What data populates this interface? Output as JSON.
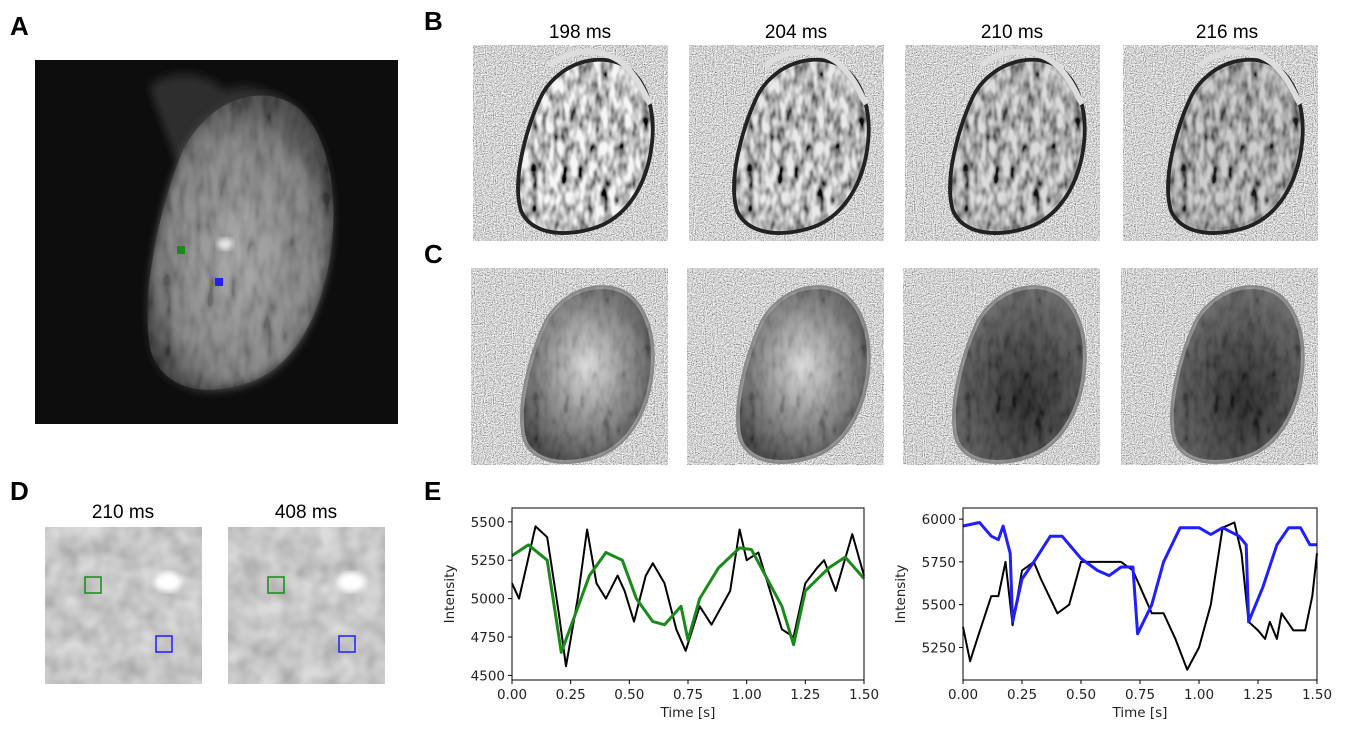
{
  "panels": {
    "A": {
      "label": "A"
    },
    "B": {
      "label": "B",
      "frames": [
        "198 ms",
        "204 ms",
        "210 ms",
        "216 ms"
      ]
    },
    "C": {
      "label": "C"
    },
    "D": {
      "label": "D",
      "frames": [
        "210 ms",
        "408 ms"
      ]
    },
    "E": {
      "label": "E"
    }
  },
  "chart_data": [
    {
      "type": "line",
      "xlabel": "Time [s]",
      "ylabel": "Intensity",
      "xlim": [
        0,
        1.5
      ],
      "ylim": [
        4470,
        5590
      ],
      "xticks": [
        {
          "value": 0,
          "label": "0.00"
        },
        {
          "value": 0.25,
          "label": "0.25"
        },
        {
          "value": 0.5,
          "label": "0.50"
        },
        {
          "value": 0.75,
          "label": "0.75"
        },
        {
          "value": 1,
          "label": "1.00"
        },
        {
          "value": 1.25,
          "label": "1.25"
        },
        {
          "value": 1.5,
          "label": "1.50"
        }
      ],
      "yticks": [
        4500,
        4750,
        5000,
        5250,
        5500
      ],
      "series": [
        {
          "color": "#000000",
          "x": [
            0,
            0.03,
            0.06,
            0.1,
            0.15,
            0.2,
            0.23,
            0.28,
            0.32,
            0.36,
            0.4,
            0.45,
            0.48,
            0.52,
            0.57,
            0.6,
            0.65,
            0.7,
            0.74,
            0.8,
            0.85,
            0.93,
            0.97,
            1.0,
            1.05,
            1.1,
            1.15,
            1.2,
            1.25,
            1.3,
            1.33,
            1.38,
            1.45,
            1.5
          ],
          "values": [
            5100,
            5000,
            5200,
            5470,
            5400,
            4900,
            4560,
            5000,
            5450,
            5100,
            5000,
            5150,
            5050,
            4850,
            5150,
            5230,
            5100,
            4800,
            4660,
            4950,
            4830,
            5050,
            5450,
            5250,
            5300,
            5050,
            4800,
            4750,
            5100,
            5200,
            5250,
            5050,
            5420,
            5150
          ]
        },
        {
          "color": "#1a8a1a",
          "x": [
            0,
            0.07,
            0.15,
            0.21,
            0.27,
            0.33,
            0.4,
            0.47,
            0.53,
            0.6,
            0.65,
            0.72,
            0.75,
            0.8,
            0.88,
            0.97,
            1.02,
            1.08,
            1.15,
            1.2,
            1.25,
            1.35,
            1.42,
            1.5
          ],
          "values": [
            5280,
            5350,
            5250,
            4650,
            4900,
            5150,
            5300,
            5250,
            5000,
            4850,
            4830,
            4950,
            4730,
            5000,
            5200,
            5330,
            5320,
            5150,
            4950,
            4700,
            5050,
            5200,
            5270,
            5130
          ]
        }
      ]
    },
    {
      "type": "line",
      "xlabel": "Time [s]",
      "ylabel": "Intensity",
      "xlim": [
        0,
        1.5
      ],
      "ylim": [
        5060,
        6065
      ],
      "xticks": [
        {
          "value": 0,
          "label": "0.00"
        },
        {
          "value": 0.25,
          "label": "0.25"
        },
        {
          "value": 0.5,
          "label": "0.50"
        },
        {
          "value": 0.75,
          "label": "0.75"
        },
        {
          "value": 1,
          "label": "1.00"
        },
        {
          "value": 1.25,
          "label": "1.25"
        },
        {
          "value": 1.5,
          "label": "1.50"
        }
      ],
      "yticks": [
        5250,
        5500,
        5750,
        6000
      ],
      "series": [
        {
          "color": "#000000",
          "x": [
            0,
            0.03,
            0.06,
            0.12,
            0.15,
            0.18,
            0.21,
            0.25,
            0.3,
            0.33,
            0.4,
            0.45,
            0.5,
            0.6,
            0.67,
            0.72,
            0.8,
            0.85,
            0.9,
            0.95,
            1.0,
            1.05,
            1.1,
            1.15,
            1.18,
            1.21,
            1.25,
            1.28,
            1.3,
            1.33,
            1.35,
            1.4,
            1.45,
            1.48,
            1.5
          ],
          "values": [
            5370,
            5170,
            5300,
            5550,
            5550,
            5750,
            5380,
            5700,
            5750,
            5650,
            5450,
            5500,
            5750,
            5750,
            5750,
            5700,
            5450,
            5450,
            5300,
            5120,
            5250,
            5500,
            5950,
            5980,
            5800,
            5400,
            5350,
            5300,
            5400,
            5300,
            5450,
            5350,
            5350,
            5550,
            5800
          ]
        },
        {
          "color": "#1f1fff",
          "x": [
            0,
            0.07,
            0.12,
            0.15,
            0.17,
            0.2,
            0.21,
            0.25,
            0.3,
            0.37,
            0.42,
            0.5,
            0.57,
            0.62,
            0.67,
            0.72,
            0.74,
            0.8,
            0.85,
            0.92,
            1.0,
            1.05,
            1.1,
            1.17,
            1.2,
            1.21,
            1.27,
            1.33,
            1.38,
            1.43,
            1.47,
            1.5
          ],
          "values": [
            5960,
            5980,
            5900,
            5880,
            5960,
            5800,
            5400,
            5650,
            5750,
            5900,
            5900,
            5770,
            5700,
            5670,
            5720,
            5720,
            5330,
            5500,
            5750,
            5950,
            5950,
            5910,
            5950,
            5900,
            5850,
            5400,
            5600,
            5850,
            5950,
            5950,
            5850,
            5850
          ]
        }
      ]
    }
  ]
}
